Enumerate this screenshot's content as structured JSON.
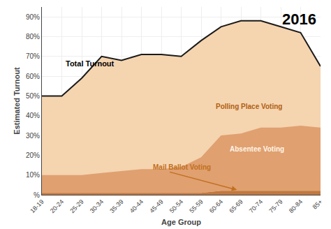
{
  "chart_data": {
    "type": "area",
    "xlabel": "Age Group",
    "ylabel": "Estimated Turnout",
    "annotations": [
      "2016"
    ],
    "categories": [
      "18-19",
      "20-24",
      "25-29",
      "30-34",
      "35-39",
      "40-44",
      "45-49",
      "50-54",
      "55-59",
      "60-64",
      "65-69",
      "70-74",
      "75-79",
      "80-84",
      "85+"
    ],
    "series": [
      {
        "name": "Polling Place Voting",
        "type": "area",
        "color": "#f5d4b0",
        "values": [
          50,
          50,
          59,
          70,
          68,
          71,
          71,
          70,
          78,
          85,
          88,
          88,
          85,
          82,
          65
        ]
      },
      {
        "name": "Mail Ballot Voting",
        "type": "stacked_area",
        "color": "#c07840",
        "values": [
          1,
          1,
          1,
          1,
          1,
          1,
          1,
          1,
          1,
          2,
          2,
          2,
          2,
          2,
          2
        ]
      },
      {
        "name": "Absentee Voting",
        "type": "stacked_area",
        "color": "#e0a070",
        "values": [
          9,
          9,
          9,
          10,
          11,
          12,
          12,
          13,
          18,
          28,
          29,
          32,
          32,
          33,
          32
        ]
      },
      {
        "name": "Total Turnout",
        "type": "line",
        "color": "#1a1a1a",
        "values": [
          50,
          50,
          59,
          70,
          68,
          71,
          71,
          70,
          78,
          85,
          88,
          88,
          85,
          82,
          65
        ]
      }
    ],
    "ylim": [
      0,
      95
    ],
    "yticks": [
      {
        "value": 0,
        "label": "%"
      },
      {
        "value": 10,
        "label": "10%"
      },
      {
        "value": 20,
        "label": "20%"
      },
      {
        "value": 30,
        "label": "30%"
      },
      {
        "value": 40,
        "label": "40%"
      },
      {
        "value": 50,
        "label": "50%"
      },
      {
        "value": 60,
        "label": "60%"
      },
      {
        "value": 70,
        "label": "70%"
      },
      {
        "value": 80,
        "label": "80%"
      },
      {
        "value": 90,
        "label": "90%"
      }
    ],
    "grid": true
  }
}
